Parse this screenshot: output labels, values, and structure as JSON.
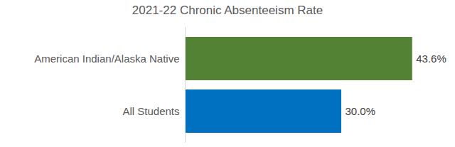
{
  "chart_data": {
    "type": "bar",
    "title": "2021-22 Chronic Absenteeism Rate",
    "orientation": "horizontal",
    "categories": [
      "American Indian/Alaska Native",
      "All Students"
    ],
    "values": [
      43.6,
      30.0
    ],
    "value_labels": [
      "43.6%",
      "30.0%"
    ],
    "colors": [
      "#548235",
      "#0070c0"
    ],
    "xlim": [
      0,
      45
    ],
    "tick_labels": "y",
    "data_labels": true,
    "grid": false
  }
}
